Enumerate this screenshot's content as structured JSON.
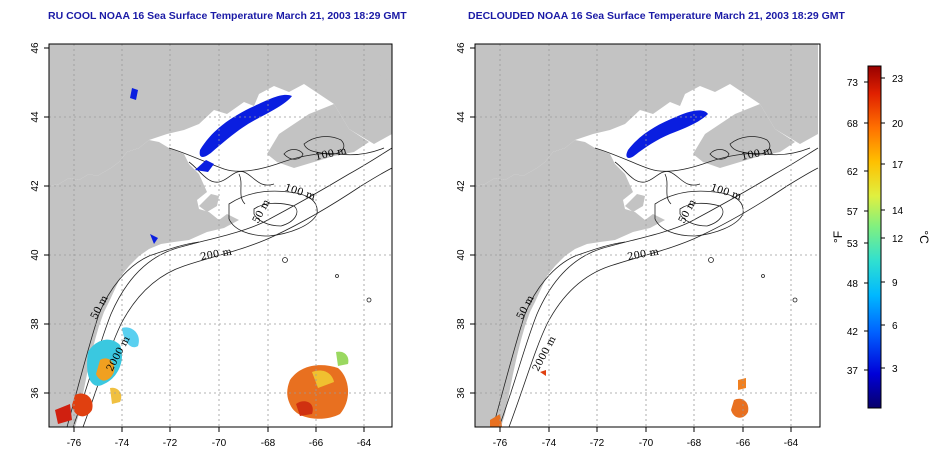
{
  "panels": [
    {
      "title": "RU COOL NOAA 16 Sea Surface Temperature March 21, 2003 18:29 GMT",
      "contour_labels": [
        "100 m",
        "100 m",
        "50 m",
        "200 m",
        "50 m",
        "2000 m"
      ]
    },
    {
      "title": "DECLOUDED NOAA 16 Sea Surface Temperature March 21, 2003 18:29 GMT",
      "contour_labels": [
        "100 m",
        "100 m",
        "50 m",
        "200 m",
        "50 m",
        "2000 m"
      ]
    }
  ],
  "axes": {
    "lon_ticks": [
      "-76",
      "-74",
      "-72",
      "-70",
      "-68",
      "-66",
      "-64"
    ],
    "lat_ticks": [
      "46",
      "44",
      "42",
      "40",
      "38",
      "36"
    ],
    "grid": "dotted",
    "lon_range": [
      -77.2,
      -63.0
    ],
    "lat_range": [
      35.0,
      46.0
    ]
  },
  "colorbar": {
    "unit_f": "°F",
    "unit_c": "°C",
    "f_ticks": [
      "73",
      "68",
      "62",
      "57",
      "53",
      "48",
      "42",
      "37"
    ],
    "c_ticks": [
      "23",
      "20",
      "17",
      "14",
      "12",
      "9",
      "6",
      "3"
    ],
    "colors": [
      "#08006b",
      "#0000d8",
      "#0060ff",
      "#00b8ff",
      "#30e0d0",
      "#80f080",
      "#e0f040",
      "#ffc000",
      "#ff7000",
      "#e02000",
      "#980000"
    ]
  },
  "colors": {
    "land": "#c3c3c3",
    "water": "#ffffff",
    "cold_patch": "#0a1ee0",
    "title": "#1a1aa6"
  }
}
